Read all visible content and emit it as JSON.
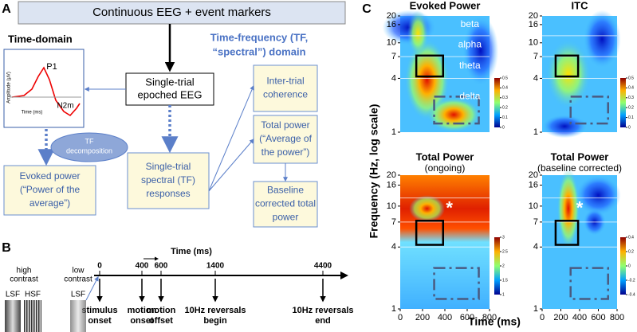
{
  "panel_a": {
    "label": "A",
    "top_box": "Continuous EEG + event markers",
    "time_domain_title": "Time-domain",
    "tf_title": [
      "Time-frequency (TF,",
      "“spectral”) domain"
    ],
    "inset": {
      "y_label": "Amplitude (μV)",
      "x_label": "Time (ms)",
      "p1": "P1",
      "n2m": "N2m"
    },
    "single_trial_epoched": [
      "Single-trial",
      "epoched EEG"
    ],
    "tf_decomposition": [
      "TF",
      "decomposition"
    ],
    "evoked_power": [
      "Evoked power",
      "(“Power of the",
      "average”)"
    ],
    "single_trial_spectral": [
      "Single-trial",
      "spectral (TF)",
      "responses"
    ],
    "inter_trial": [
      "Inter-trial",
      "coherence"
    ],
    "total_power": [
      "Total power",
      "(“Average of",
      "the power”)"
    ],
    "baseline_corrected": [
      "Baseline",
      "corrected total",
      "power"
    ]
  },
  "panel_b": {
    "label": "B",
    "axis_label": "Time (ms)",
    "ticks": [
      0,
      400,
      600,
      1400,
      4400
    ],
    "events": [
      [
        "stimulus",
        "onset"
      ],
      [
        "motion",
        "onset"
      ],
      [
        "motion",
        "offset"
      ],
      [
        "10Hz reversals",
        "begin"
      ],
      [
        "10Hz reversals",
        "end"
      ]
    ],
    "high_contrast": [
      "high",
      "contrast"
    ],
    "low_contrast": [
      "low",
      "contrast"
    ],
    "lsf": "LSF",
    "hsf": "HSF"
  },
  "panel_c": {
    "label": "C",
    "y_label": "Frequency (Hz, log scale)",
    "x_label": "Time (ms)",
    "freq_ticks": [
      20,
      16,
      10,
      7,
      4,
      1
    ],
    "time_ticks": [
      0,
      200,
      400,
      600,
      800
    ],
    "bands": [
      "beta",
      "alpha",
      "theta",
      "delta"
    ],
    "asterisk": "*",
    "panels": [
      {
        "title": [
          "Evoked Power"
        ],
        "colorbar": [
          0.5,
          0.4,
          0.3,
          0.2,
          0.1,
          0
        ]
      },
      {
        "title": [
          "ITC"
        ],
        "colorbar": [
          0.5,
          0.4,
          0.3,
          0.2,
          0.1,
          0
        ]
      },
      {
        "title": [
          "Total Power",
          "(ongoing)"
        ],
        "colorbar": [
          3,
          2.5,
          2,
          1.5,
          1
        ]
      },
      {
        "title": [
          "Total Power",
          "(baseline corrected)"
        ],
        "colorbar": [
          0.4,
          0.2,
          0,
          -0.2,
          -0.4
        ]
      }
    ]
  }
}
